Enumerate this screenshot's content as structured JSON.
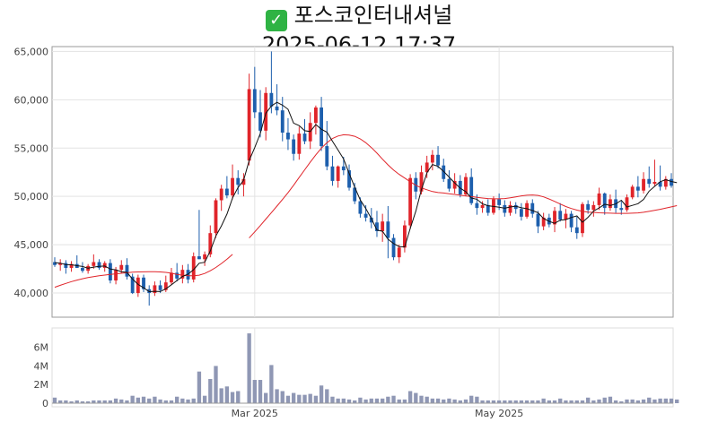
{
  "title": {
    "icon": "check-mark-icon",
    "icon_glyph": "✓",
    "line1": "포스코인터내셔널",
    "line2": "2025-06-12 17:37"
  },
  "colors": {
    "up": "#e0242a",
    "down": "#1d5fad",
    "ma_short": "#111111",
    "ma_long": "#e0242a",
    "volume": "#8f97b4",
    "grid": "#e3e3e3",
    "axis": "#9a9a9a"
  },
  "chart_data": [
    {
      "type": "candlestick",
      "title": "",
      "ylim": [
        37500,
        65500
      ],
      "yticks": [
        40000,
        45000,
        50000,
        55000,
        60000,
        65000
      ],
      "ytick_labels": [
        "40,000",
        "45,000",
        "50,000",
        "55,000",
        "60,000",
        "65,000"
      ],
      "xtick_labels": [
        {
          "index": 36,
          "label": "Mar 2025"
        },
        {
          "index": 80,
          "label": "May 2025"
        }
      ],
      "candles": [
        [
          43200,
          43700,
          42700,
          42900
        ],
        [
          42900,
          43500,
          42300,
          43100
        ],
        [
          43100,
          43400,
          42000,
          42600
        ],
        [
          42600,
          43300,
          42200,
          43000
        ],
        [
          43000,
          43900,
          42800,
          42600
        ],
        [
          42600,
          43200,
          42100,
          42300
        ],
        [
          42300,
          43000,
          42000,
          42800
        ],
        [
          42800,
          44000,
          42500,
          43200
        ],
        [
          43200,
          43500,
          42400,
          42600
        ],
        [
          42600,
          43300,
          42200,
          43100
        ],
        [
          43100,
          43500,
          41000,
          41300
        ],
        [
          41300,
          42700,
          40900,
          42400
        ],
        [
          42400,
          43400,
          42000,
          42900
        ],
        [
          42900,
          43600,
          41400,
          41700
        ],
        [
          41700,
          42000,
          39900,
          40000
        ],
        [
          40000,
          41900,
          39600,
          41600
        ],
        [
          41600,
          41900,
          40100,
          40400
        ],
        [
          40400,
          40800,
          38700,
          40000
        ],
        [
          40000,
          41200,
          39700,
          40800
        ],
        [
          40800,
          41300,
          40000,
          40300
        ],
        [
          40300,
          41800,
          40100,
          41100
        ],
        [
          41100,
          42600,
          40900,
          42100
        ],
        [
          42100,
          43100,
          41200,
          41500
        ],
        [
          41500,
          42900,
          41000,
          42400
        ],
        [
          42400,
          43000,
          41000,
          41400
        ],
        [
          41400,
          44200,
          41100,
          43800
        ],
        [
          43800,
          48600,
          43500,
          43500
        ],
        [
          43500,
          44300,
          42800,
          44000
        ],
        [
          44000,
          47000,
          43700,
          46200
        ],
        [
          46200,
          49800,
          45700,
          49600
        ],
        [
          49600,
          51200,
          48500,
          50800
        ],
        [
          50800,
          52100,
          49800,
          50100
        ],
        [
          50100,
          53300,
          49700,
          51900
        ],
        [
          51900,
          52700,
          50200,
          51200
        ],
        [
          51200,
          52400,
          50000,
          51800
        ],
        [
          53700,
          62700,
          53200,
          61100
        ],
        [
          61100,
          63400,
          58100,
          58700
        ],
        [
          58700,
          61000,
          56100,
          56800
        ],
        [
          56800,
          61300,
          55800,
          60700
        ],
        [
          60700,
          65000,
          58600,
          59300
        ],
        [
          59300,
          61600,
          58400,
          58900
        ],
        [
          58900,
          60300,
          55700,
          56600
        ],
        [
          56600,
          58100,
          54800,
          55900
        ],
        [
          55900,
          56400,
          53700,
          54400
        ],
        [
          54400,
          57200,
          53800,
          56500
        ],
        [
          56500,
          58000,
          55400,
          55700
        ],
        [
          55700,
          58700,
          54900,
          57600
        ],
        [
          57600,
          59400,
          56400,
          59200
        ],
        [
          59200,
          60300,
          54700,
          55200
        ],
        [
          55200,
          57800,
          52700,
          53100
        ],
        [
          53100,
          54200,
          51100,
          51600
        ],
        [
          51600,
          53200,
          50900,
          53100
        ],
        [
          53100,
          54100,
          52200,
          52700
        ],
        [
          52700,
          53300,
          50600,
          50900
        ],
        [
          50900,
          51400,
          49200,
          49500
        ],
        [
          49500,
          49900,
          47800,
          48200
        ],
        [
          48200,
          49100,
          47400,
          47800
        ],
        [
          47800,
          48800,
          46700,
          47300
        ],
        [
          47300,
          48500,
          45800,
          46400
        ],
        [
          46400,
          48200,
          45300,
          47400
        ],
        [
          47400,
          49000,
          43600,
          45700
        ],
        [
          45700,
          46100,
          43400,
          43700
        ],
        [
          43700,
          45000,
          43100,
          44700
        ],
        [
          44700,
          47500,
          44200,
          47000
        ],
        [
          47000,
          52300,
          46600,
          51900
        ],
        [
          51900,
          52500,
          49700,
          50500
        ],
        [
          50500,
          53200,
          50200,
          52500
        ],
        [
          52500,
          54200,
          51900,
          53500
        ],
        [
          53500,
          54800,
          52700,
          54300
        ],
        [
          54300,
          55200,
          52900,
          53200
        ],
        [
          53200,
          53900,
          51500,
          51800
        ],
        [
          51800,
          52700,
          50500,
          50800
        ],
        [
          50800,
          52400,
          50300,
          51600
        ],
        [
          51600,
          52200,
          49900,
          50200
        ],
        [
          50200,
          52400,
          50000,
          52000
        ],
        [
          52000,
          52900,
          49100,
          49300
        ],
        [
          49300,
          50200,
          48100,
          48800
        ],
        [
          48800,
          49500,
          48300,
          49100
        ],
        [
          49100,
          49700,
          48000,
          48300
        ],
        [
          48300,
          50000,
          48100,
          49700
        ],
        [
          49700,
          50300,
          48600,
          49100
        ],
        [
          49100,
          49600,
          47900,
          48300
        ],
        [
          48300,
          49500,
          48000,
          49100
        ],
        [
          49100,
          49400,
          48200,
          48700
        ],
        [
          48700,
          49300,
          47500,
          47900
        ],
        [
          47900,
          49600,
          47700,
          49300
        ],
        [
          49300,
          49700,
          47800,
          48200
        ],
        [
          48200,
          48500,
          46200,
          46900
        ],
        [
          46900,
          48300,
          46500,
          47800
        ],
        [
          47800,
          48200,
          46800,
          47100
        ],
        [
          47100,
          48900,
          46300,
          48500
        ],
        [
          48500,
          49300,
          47400,
          47600
        ],
        [
          47600,
          48700,
          46700,
          48200
        ],
        [
          48200,
          48500,
          46300,
          46800
        ],
        [
          46800,
          47900,
          45600,
          46200
        ],
        [
          46200,
          49400,
          45800,
          49200
        ],
        [
          49200,
          49600,
          48200,
          48600
        ],
        [
          48600,
          49500,
          47900,
          49100
        ],
        [
          49100,
          50900,
          48600,
          50300
        ],
        [
          50300,
          50400,
          48100,
          48800
        ],
        [
          48800,
          50200,
          48500,
          49700
        ],
        [
          49700,
          50700,
          48300,
          48800
        ],
        [
          48800,
          49500,
          48100,
          48600
        ],
        [
          48600,
          50200,
          48400,
          49900
        ],
        [
          49900,
          51200,
          49700,
          51000
        ],
        [
          51000,
          52100,
          49900,
          50600
        ],
        [
          50600,
          52500,
          50300,
          51800
        ],
        [
          51800,
          53100,
          50900,
          51300
        ],
        [
          51300,
          53800,
          51100,
          51500
        ],
        [
          51500,
          53200,
          50600,
          51000
        ],
        [
          51000,
          52100,
          50700,
          51800
        ],
        [
          51800,
          52400,
          50900,
          51100
        ]
      ],
      "ma_short": [
        43150,
        43090,
        42930,
        42920,
        42830,
        42750,
        42570,
        42680,
        42760,
        42790,
        42480,
        42400,
        42210,
        42140,
        41450,
        40890,
        40540,
        40140,
        40180,
        40150,
        40440,
        40860,
        41290,
        41720,
        41950,
        42410,
        43080,
        43180,
        44350,
        45900,
        46950,
        48170,
        49840,
        50920,
        51660,
        53710,
        55040,
        56510,
        58600,
        59360,
        59730,
        59440,
        59020,
        57580,
        57320,
        56790,
        56710,
        57430,
        56940,
        56650,
        55700,
        54800,
        53870,
        52390,
        50960,
        49640,
        48740,
        47700,
        46510,
        46390,
        45570,
        45120,
        44810,
        44770,
        46690,
        48470,
        50680,
        52440,
        53300,
        53100,
        52590,
        52000,
        51400,
        50850,
        50490,
        49830,
        49700,
        49230,
        49030,
        48960,
        48880,
        48770,
        48900,
        48990,
        48820,
        48730,
        48530,
        48310,
        47720,
        47420,
        47220,
        47540,
        47600,
        47820,
        47980,
        47330,
        47840,
        48480,
        48800,
        49190,
        49060,
        49220,
        49600,
        48900,
        49070,
        49250,
        49690,
        50540,
        51040,
        51520,
        51730,
        51550,
        51420
      ],
      "ma_long": [
        40600,
        40800,
        41000,
        41180,
        41340,
        41480,
        41600,
        41700,
        41790,
        41860,
        41920,
        41980,
        42040,
        42100,
        42150,
        42180,
        42190,
        42200,
        42200,
        42180,
        42140,
        42050,
        41930,
        41850,
        41780,
        41780,
        41850,
        42020,
        42300,
        42650,
        43050,
        43500,
        44000,
        null,
        null,
        45700,
        46330,
        46980,
        47650,
        48320,
        49000,
        49680,
        50380,
        51150,
        51950,
        52750,
        53550,
        54300,
        55000,
        55550,
        56000,
        56250,
        56380,
        56350,
        56220,
        55950,
        55550,
        55050,
        54480,
        53850,
        53250,
        52720,
        52280,
        51900,
        51520,
        51150,
        50880,
        50680,
        50500,
        50400,
        50350,
        50280,
        50200,
        50120,
        50050,
        49980,
        49900,
        49830,
        49780,
        49750,
        49750,
        49780,
        49850,
        49950,
        50050,
        50120,
        50150,
        50100,
        49950,
        49730,
        49480,
        49210,
        48950,
        48750,
        48580,
        48450,
        48380,
        48350,
        48300,
        48280,
        48260,
        48250,
        48250,
        48250,
        48260,
        48290,
        48360,
        48450,
        48550,
        48660,
        48780,
        48910,
        49040
      ],
      "volume": [
        600000,
        300000,
        300000,
        200000,
        300000,
        200000,
        200000,
        300000,
        300000,
        300000,
        300000,
        500000,
        400000,
        300000,
        800000,
        600000,
        700000,
        500000,
        700000,
        400000,
        300000,
        300000,
        700000,
        500000,
        400000,
        500000,
        3400000,
        800000,
        2600000,
        4000000,
        1600000,
        1800000,
        1200000,
        1300000,
        null,
        7500000,
        2500000,
        2500000,
        1100000,
        4100000,
        1500000,
        1300000,
        800000,
        1100000,
        900000,
        900000,
        1000000,
        800000,
        1900000,
        1500000,
        700000,
        500000,
        500000,
        400000,
        300000,
        600000,
        400000,
        500000,
        500000,
        500000,
        700000,
        800000,
        400000,
        400000,
        1300000,
        1100000,
        800000,
        700000,
        500000,
        500000,
        400000,
        500000,
        400000,
        300000,
        400000,
        800000,
        700000,
        300000,
        300000,
        300000,
        300000,
        300000,
        300000,
        300000,
        300000,
        300000,
        300000,
        300000,
        500000,
        300000,
        300000,
        500000,
        300000,
        300000,
        300000,
        300000,
        600000,
        300000,
        400000,
        600000,
        700000,
        300000,
        200000,
        400000,
        400000,
        300000,
        400000,
        600000,
        400000,
        500000,
        500000,
        500000,
        400000
      ],
      "volume_yticks": [
        0,
        2000000,
        4000000,
        6000000
      ],
      "volume_ytick_labels": [
        "0",
        "2M",
        "4M",
        "6M"
      ]
    }
  ]
}
